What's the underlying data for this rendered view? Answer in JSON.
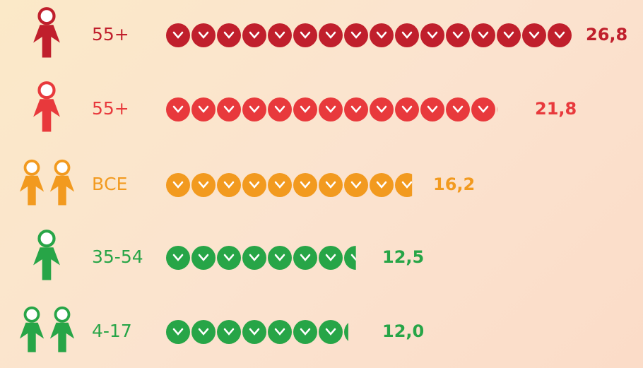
{
  "chart_data": {
    "type": "pictogram",
    "categories": [
      "55+",
      "55+",
      "ВСЕ",
      "35-54",
      "4-17"
    ],
    "values": [
      26.8,
      21.8,
      16.2,
      12.5,
      12.0
    ],
    "value_labels": [
      "26,8",
      "21,8",
      "16,2",
      "12,5",
      "12,0"
    ],
    "colors": [
      "#c01f2c",
      "#e8393c",
      "#f29a1f",
      "#27a547",
      "#27a547"
    ]
  }
}
